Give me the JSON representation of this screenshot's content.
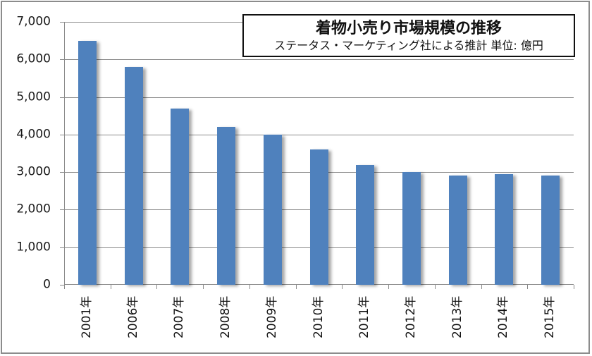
{
  "chart_data": {
    "type": "bar",
    "title": "着物小売り市場規模の推移",
    "subtitle": "ステータス・マーケティング社による推計 単位: 億円",
    "xlabel": "",
    "ylabel": "",
    "categories": [
      "2001年",
      "2006年",
      "2007年",
      "2008年",
      "2009年",
      "2010年",
      "2011年",
      "2012年",
      "2013年",
      "2014年",
      "2015年"
    ],
    "values": [
      6500,
      5800,
      4700,
      4200,
      4000,
      3600,
      3200,
      3000,
      2900,
      2950,
      2900
    ],
    "ylim": [
      0,
      7000
    ],
    "yticks": [
      "0",
      "1,000",
      "2,000",
      "3,000",
      "4,000",
      "5,000",
      "6,000",
      "7,000"
    ],
    "grid": true,
    "legend": "none",
    "bar_color": "#4f81bd"
  },
  "title": {
    "main": "着物小売り市場規模の推移",
    "sub": "ステータス・マーケティング社による推計  単位: 億円"
  }
}
